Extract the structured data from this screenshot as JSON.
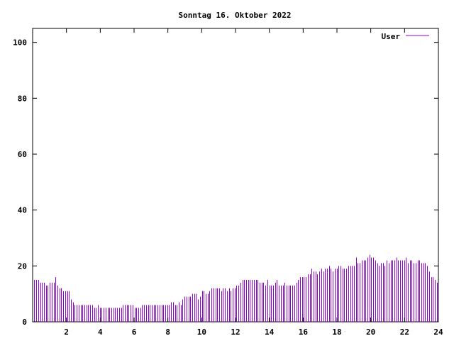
{
  "chart_data": {
    "type": "bar",
    "title": "Sonntag 16. Oktober 2022",
    "xlim": [
      0,
      24
    ],
    "ylim": [
      0,
      105
    ],
    "x_ticks": [
      "2",
      "4",
      "6",
      "8",
      "10",
      "12",
      "14",
      "16",
      "18",
      "20",
      "22",
      "24"
    ],
    "y_ticks": [
      "0",
      "20",
      "40",
      "60",
      "80",
      "100"
    ],
    "grid": false,
    "legend_position": "top-right",
    "series": [
      {
        "name": "User",
        "color": "#9400d3",
        "values": [
          15,
          15,
          15,
          14,
          14,
          14,
          13,
          13,
          14,
          14,
          14,
          16,
          13,
          12,
          12,
          11,
          11,
          11,
          11,
          8,
          7,
          6,
          6,
          6,
          6,
          6,
          6,
          6,
          6,
          6,
          6,
          5,
          5,
          6,
          5,
          5,
          5,
          5,
          5,
          5,
          5,
          5,
          5,
          5,
          5,
          5,
          6,
          6,
          6,
          6,
          6,
          6,
          5,
          5,
          5,
          5,
          6,
          6,
          6,
          6,
          6,
          6,
          6,
          6,
          6,
          6,
          6,
          6,
          6,
          6,
          6,
          7,
          7,
          6,
          6,
          7,
          6,
          8,
          9,
          9,
          9,
          9,
          10,
          10,
          10,
          8,
          9,
          11,
          11,
          10,
          10,
          11,
          12,
          12,
          12,
          12,
          12,
          11,
          12,
          12,
          11,
          12,
          11,
          12,
          12,
          13,
          13,
          14,
          15,
          15,
          15,
          15,
          15,
          15,
          15,
          15,
          15,
          14,
          14,
          14,
          13,
          15,
          13,
          13,
          13,
          14,
          15,
          13,
          13,
          13,
          14,
          13,
          13,
          13,
          13,
          13,
          14,
          15,
          16,
          16,
          16,
          16,
          17,
          17,
          19,
          18,
          18,
          17,
          18,
          19,
          18,
          19,
          19,
          20,
          19,
          18,
          19,
          19,
          20,
          20,
          19,
          19,
          19,
          20,
          20,
          20,
          20,
          23,
          21,
          21,
          22,
          22,
          22,
          23,
          24,
          23,
          23,
          22,
          21,
          20,
          21,
          21,
          20,
          22,
          21,
          22,
          22,
          22,
          23,
          22,
          22,
          22,
          22,
          23,
          21,
          22,
          22,
          21,
          21,
          22,
          22,
          21,
          21,
          21,
          20,
          18,
          16,
          16,
          15,
          14
        ]
      }
    ]
  }
}
